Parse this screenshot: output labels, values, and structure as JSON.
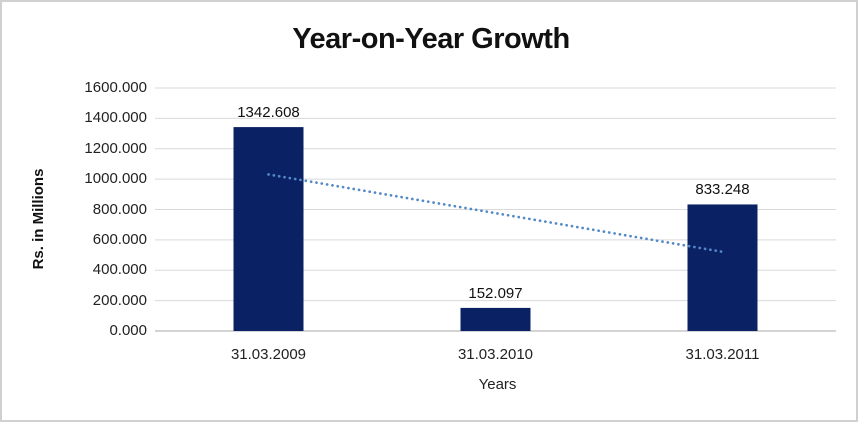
{
  "chart_data": {
    "type": "bar",
    "title": "Year-on-Year Growth",
    "xlabel": "Years",
    "ylabel": "Rs. in Millions",
    "categories": [
      "31.03.2009",
      "31.03.2010",
      "31.03.2011"
    ],
    "values": [
      1342.608,
      152.097,
      833.248
    ],
    "value_labels": [
      "1342.608",
      "152.097",
      "833.248"
    ],
    "ylim": [
      0,
      1600
    ],
    "yticks": [
      0,
      200,
      400,
      600,
      800,
      1000,
      1200,
      1400,
      1600
    ],
    "ytick_labels": [
      "0.000",
      "200.000",
      "400.000",
      "600.000",
      "800.000",
      "1000.000",
      "1200.000",
      "1400.000",
      "1600.000"
    ],
    "grid": "horizontal",
    "legend": "none",
    "trendline": {
      "type": "linear",
      "style": "dotted",
      "fit_values": [
        1030.664,
        775.984,
        521.304
      ],
      "color": "#5588c8"
    },
    "colors": {
      "bar": "#0a2263",
      "gridline": "#d9d9d9",
      "zero_line": "#c6c6c6",
      "title_text": "#111111",
      "frame_border": "#d0d0d0",
      "background": "#ffffff"
    }
  }
}
